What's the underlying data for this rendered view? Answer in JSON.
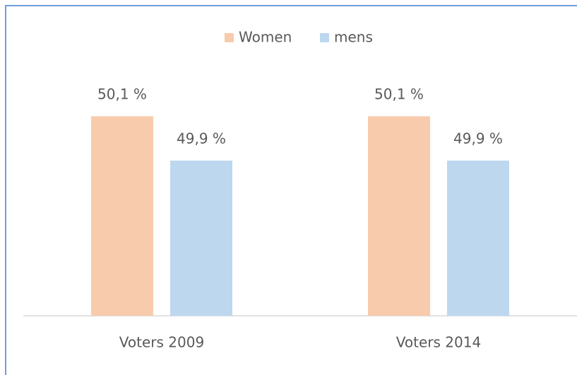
{
  "chart_data": {
    "type": "bar",
    "categories": [
      "Voters 2009",
      "Voters 2014"
    ],
    "series": [
      {
        "name": "Women",
        "color": "#f8cbad",
        "values": [
          50.1,
          50.1
        ],
        "value_labels": [
          "50,1 %",
          "50,1 %"
        ]
      },
      {
        "name": "mens",
        "color": "#bdd7ee",
        "values": [
          49.9,
          49.9
        ],
        "value_labels": [
          "49,9 %",
          "49,9 %"
        ]
      }
    ],
    "ylim": [
      49.2,
      50.2
    ],
    "legend": "top"
  }
}
